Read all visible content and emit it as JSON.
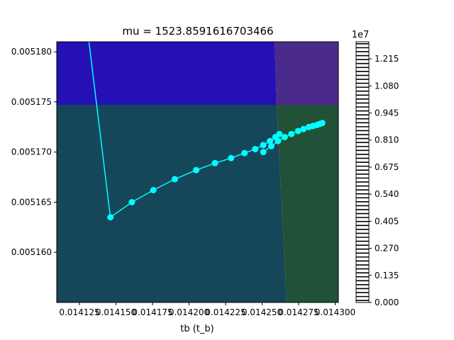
{
  "chart_data": {
    "type": "line",
    "title": "mu = 1523.8591616703466",
    "xlabel": "tb (t_b)",
    "ylabel": "",
    "xlim": [
      0.0141,
      0.01431
    ],
    "ylim": [
      0.005155,
      0.005181
    ],
    "x_ticks": [
      0.01412,
      0.01415,
      0.01417,
      0.0142,
      0.01422,
      0.01425,
      0.01427,
      0.0143
    ],
    "x_tick_labels": [
      "0.014125",
      "0.014150",
      "0.014175",
      "0.014200",
      "0.014225",
      "0.014250",
      "0.014275",
      "0.014300"
    ],
    "y_ticks": [
      0.00516,
      0.005165,
      0.00517,
      0.005175,
      0.00518
    ],
    "y_tick_labels": [
      "0.005160",
      "0.005165",
      "0.005170",
      "0.005175",
      "0.005180"
    ],
    "grid": false,
    "legend": "none",
    "background_regions": [
      {
        "name": "upper-left",
        "color": "#2510b5"
      },
      {
        "name": "upper-right",
        "color": "#4a2a8a"
      },
      {
        "name": "lower-left",
        "color": "#154659"
      },
      {
        "name": "lower-right",
        "color": "#215137"
      }
    ],
    "series": [
      {
        "color": "#00ffff",
        "marker": "circle",
        "x": [
          0.014124,
          0.01414,
          0.014156,
          0.014172,
          0.014188,
          0.014204,
          0.014218,
          0.01423,
          0.01424,
          0.014248,
          0.014254,
          0.014259,
          0.014263,
          0.014266
        ],
        "y": [
          0.005181,
          0.0051635,
          0.005165,
          0.0051662,
          0.0051673,
          0.0051682,
          0.0051689,
          0.0051694,
          0.0051699,
          0.0051703,
          0.0051707,
          0.0051711,
          0.0051715,
          0.0051718
        ],
        "marker_indices_start": 1
      }
    ],
    "tail_cluster": {
      "x": [
        0.014254,
        0.01426,
        0.014265,
        0.01427,
        0.014275,
        0.01428,
        0.014284,
        0.014288,
        0.014291,
        0.014294,
        0.014296,
        0.014298
      ],
      "y": [
        0.00517,
        0.0051706,
        0.0051711,
        0.0051715,
        0.0051718,
        0.0051721,
        0.0051723,
        0.0051725,
        0.0051726,
        0.0051727,
        0.0051728,
        0.0051729
      ]
    },
    "colorbar": {
      "exponent_label": "1e7",
      "min": 0.0,
      "max": 1.3,
      "ticks": [
        0.0,
        0.135,
        0.27,
        0.405,
        0.54,
        0.675,
        0.81,
        0.945,
        1.08,
        1.215
      ],
      "tick_labels": [
        "0.000",
        "0.135",
        "0.270",
        "0.405",
        "0.540",
        "0.675",
        "0.810",
        "0.945",
        "1.080",
        "1.215"
      ],
      "stripe_count": 66
    }
  }
}
